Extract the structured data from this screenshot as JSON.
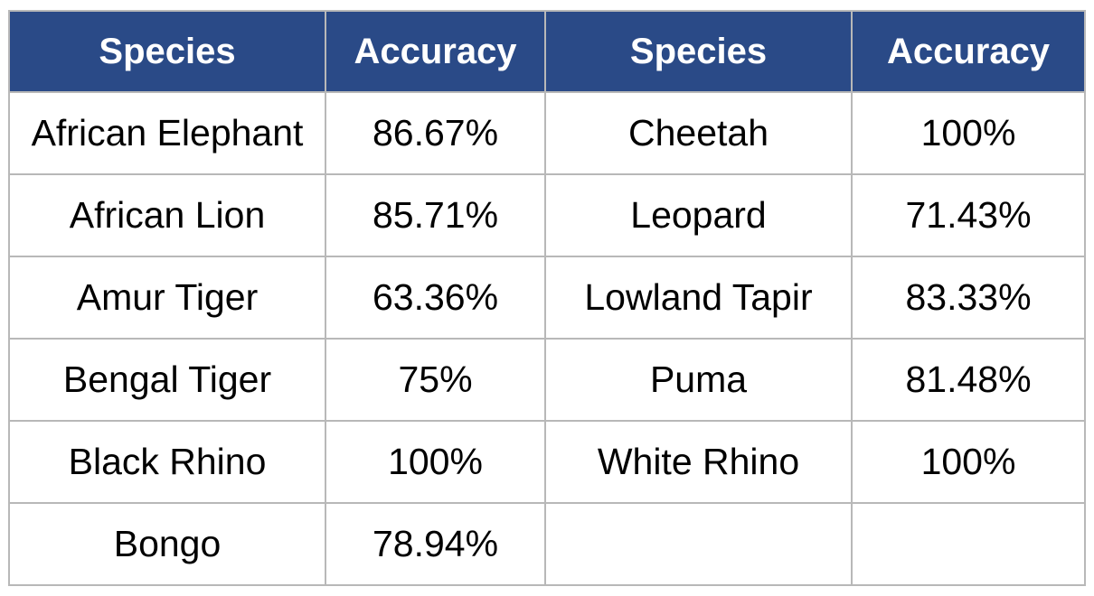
{
  "table": {
    "headers": [
      "Species",
      "Accuracy",
      "Species",
      "Accuracy"
    ],
    "rows": [
      [
        "African Elephant",
        "86.67%",
        "Cheetah",
        "100%"
      ],
      [
        "African Lion",
        "85.71%",
        "Leopard",
        "71.43%"
      ],
      [
        "Amur Tiger",
        "63.36%",
        "Lowland Tapir",
        "83.33%"
      ],
      [
        "Bengal Tiger",
        "75%",
        "Puma",
        "81.48%"
      ],
      [
        "Black Rhino",
        "100%",
        "White Rhino",
        "100%"
      ],
      [
        "Bongo",
        "78.94%",
        "",
        ""
      ]
    ]
  },
  "colors": {
    "header_background": "#2a4a87",
    "header_text": "#ffffff",
    "grid_lines": "#b8b8b8"
  }
}
